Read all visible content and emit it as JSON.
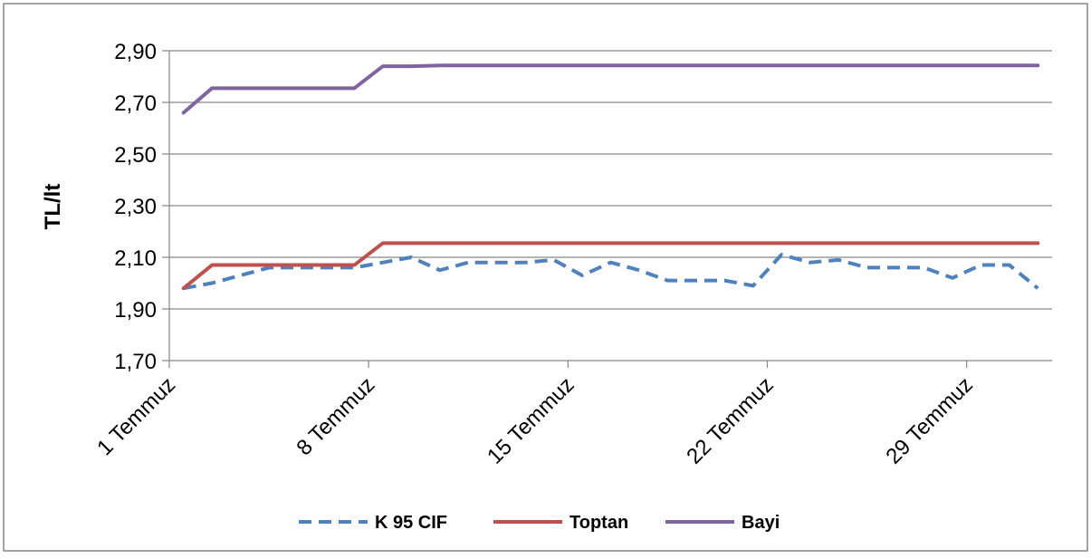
{
  "chart_data": {
    "type": "line",
    "title": "",
    "xlabel": "",
    "ylabel": "TL/lt",
    "ylim": [
      1.7,
      2.9
    ],
    "yticks": [
      "1,70",
      "1,90",
      "2,10",
      "2,30",
      "2,50",
      "2,70",
      "2,90"
    ],
    "ytick_values": [
      1.7,
      1.9,
      2.1,
      2.3,
      2.5,
      2.7,
      2.9
    ],
    "grid": true,
    "legend_position": "bottom",
    "x": [
      1,
      2,
      3,
      4,
      5,
      6,
      7,
      8,
      9,
      10,
      11,
      12,
      13,
      14,
      15,
      16,
      17,
      18,
      19,
      20,
      21,
      22,
      23,
      24,
      25,
      26,
      27,
      28,
      29,
      30,
      31
    ],
    "x_tick_labels": [
      {
        "x": 1,
        "label": "1 Temmuz"
      },
      {
        "x": 8,
        "label": "8 Temmuz"
      },
      {
        "x": 15,
        "label": "15 Temmuz"
      },
      {
        "x": 22,
        "label": "22 Temmuz"
      },
      {
        "x": 29,
        "label": "29 Temmuz"
      }
    ],
    "series": [
      {
        "name": "K 95 CIF",
        "color": "#4F81BD",
        "dash": "dashed",
        "values": [
          1.98,
          2.0,
          2.03,
          2.06,
          2.06,
          2.06,
          2.06,
          2.08,
          2.1,
          2.05,
          2.08,
          2.08,
          2.08,
          2.09,
          2.03,
          2.08,
          2.05,
          2.01,
          2.01,
          2.01,
          1.99,
          2.11,
          2.08,
          2.09,
          2.06,
          2.06,
          2.06,
          2.02,
          2.07,
          2.07,
          1.98
        ]
      },
      {
        "name": "Toptan",
        "color": "#C0504D",
        "dash": "solid",
        "values": [
          1.98,
          2.07,
          2.07,
          2.07,
          2.07,
          2.07,
          2.07,
          2.155,
          2.155,
          2.155,
          2.155,
          2.155,
          2.155,
          2.155,
          2.155,
          2.155,
          2.155,
          2.155,
          2.155,
          2.155,
          2.155,
          2.155,
          2.155,
          2.155,
          2.155,
          2.155,
          2.155,
          2.155,
          2.155,
          2.155,
          2.155
        ]
      },
      {
        "name": "Bayi",
        "color": "#8064A2",
        "dash": "solid",
        "values": [
          2.66,
          2.755,
          2.755,
          2.755,
          2.755,
          2.755,
          2.755,
          2.84,
          2.84,
          2.843,
          2.843,
          2.843,
          2.843,
          2.843,
          2.843,
          2.843,
          2.843,
          2.843,
          2.843,
          2.843,
          2.843,
          2.843,
          2.843,
          2.843,
          2.843,
          2.843,
          2.843,
          2.843,
          2.843,
          2.843,
          2.843
        ]
      }
    ]
  }
}
